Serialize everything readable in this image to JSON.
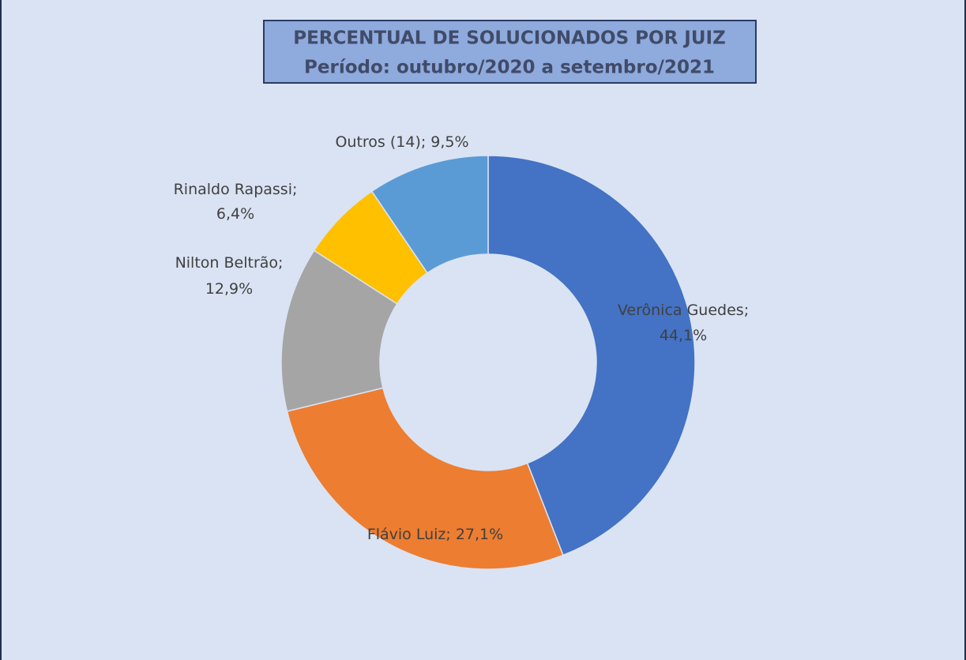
{
  "chart_data": {
    "type": "donut",
    "title": "PERCENTUAL DE SOLUCIONADOS POR JUIZ",
    "subtitle": "Período: outubro/2020 a setembro/2021",
    "categories": [
      "Verônica Guedes",
      "Flávio Luiz",
      "Nilton Beltrão",
      "Rinaldo Rapassi",
      "Outros (14)"
    ],
    "values": [
      44.1,
      27.1,
      12.9,
      6.4,
      9.5
    ],
    "value_labels": [
      "44,1%",
      "27,1%",
      "12,9%",
      "6,4%",
      "9,5%"
    ],
    "label_separator": ";",
    "colors": [
      "#4472c4",
      "#ed7d31",
      "#a5a5a5",
      "#ffc000",
      "#5b9bd5"
    ]
  }
}
